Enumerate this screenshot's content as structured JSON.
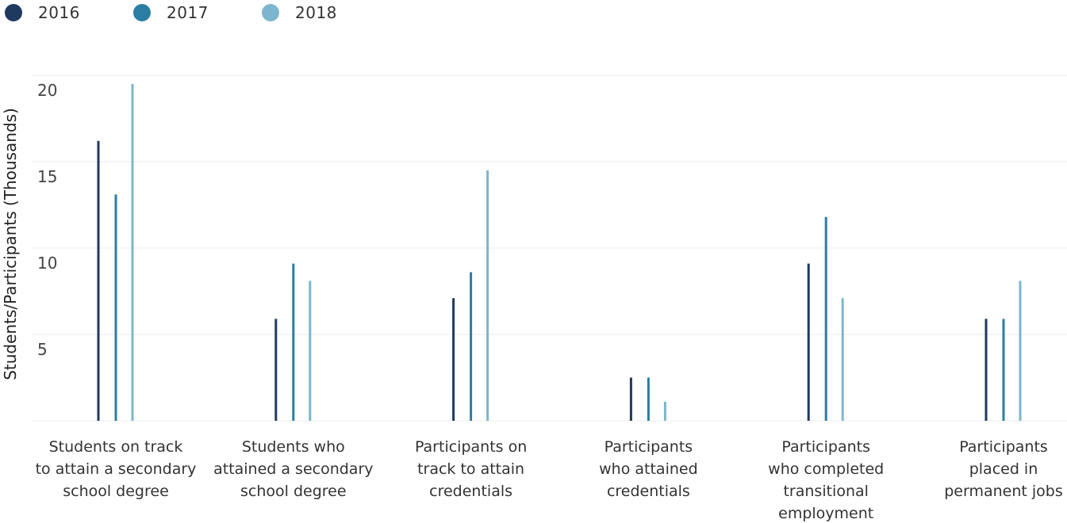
{
  "chart_data": {
    "type": "bar",
    "title": "",
    "xlabel": "",
    "ylabel": "Students/Participants (Thousands)",
    "ylim": [
      0,
      20
    ],
    "yticks": [
      5,
      10,
      15,
      20
    ],
    "grid": true,
    "legend_position": "top-left",
    "categories": [
      "Students on track to attain a secondary school degree",
      "Students who attained a secondary school degree",
      "Participants on track to attain credentials",
      "Participants who attained credentials",
      "Participants who completed transitional employment",
      "Participants placed in permanent jobs"
    ],
    "category_lines": [
      [
        "Students on track",
        "to attain a secondary",
        "school degree"
      ],
      [
        "Students who",
        "attained a secondary",
        "school degree"
      ],
      [
        "Participants on",
        "track to attain",
        "credentials"
      ],
      [
        "Participants",
        "who attained",
        "credentials"
      ],
      [
        "Participants",
        "who completed",
        "transitional",
        "employment"
      ],
      [
        "Participants",
        "placed in",
        "permanent jobs"
      ]
    ],
    "series": [
      {
        "name": "2016",
        "color": "#1f3a5f",
        "values": [
          16.2,
          5.9,
          7.1,
          2.5,
          9.1,
          5.9
        ]
      },
      {
        "name": "2017",
        "color": "#2b7da3",
        "values": [
          13.1,
          9.1,
          8.6,
          2.5,
          11.8,
          5.9
        ]
      },
      {
        "name": "2018",
        "color": "#7cb6ce",
        "values": [
          19.5,
          8.1,
          14.5,
          1.1,
          7.1,
          8.1
        ]
      }
    ]
  }
}
